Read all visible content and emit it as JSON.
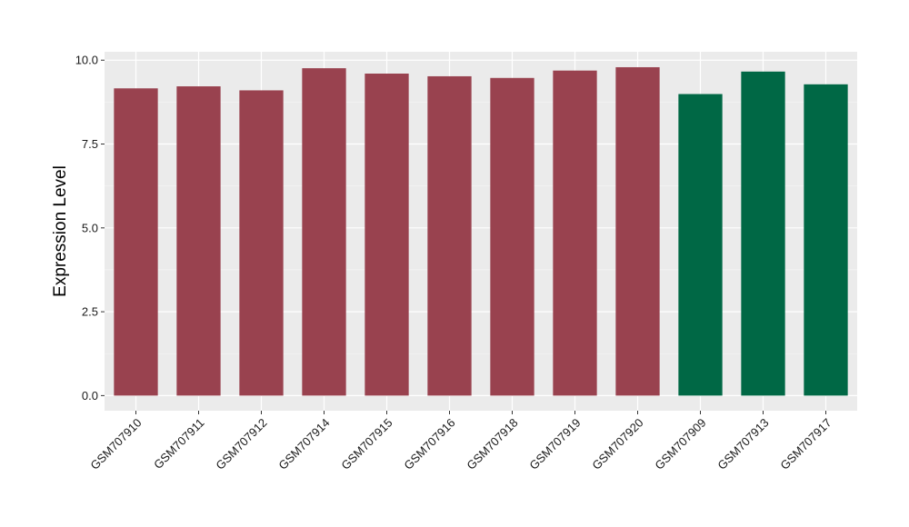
{
  "chart_data": {
    "type": "bar",
    "title": "",
    "xlabel": "",
    "ylabel": "Expression Level",
    "ylim": [
      -0.45,
      10.25
    ],
    "yticks": [
      "0.0",
      "2.5",
      "5.0",
      "7.5",
      "10.0"
    ],
    "categories": [
      "GSM707910",
      "GSM707911",
      "GSM707912",
      "GSM707914",
      "GSM707915",
      "GSM707916",
      "GSM707918",
      "GSM707919",
      "GSM707920",
      "GSM707909",
      "GSM707913",
      "GSM707917"
    ],
    "values": [
      9.16,
      9.22,
      9.1,
      9.76,
      9.6,
      9.52,
      9.47,
      9.69,
      9.79,
      8.99,
      9.66,
      9.28
    ],
    "bar_colors": [
      "#99424f",
      "#99424f",
      "#99424f",
      "#99424f",
      "#99424f",
      "#99424f",
      "#99424f",
      "#99424f",
      "#99424f",
      "#006845",
      "#006845",
      "#006845"
    ],
    "panel_background": "#ebebeb",
    "grid": true,
    "legend": "none"
  }
}
